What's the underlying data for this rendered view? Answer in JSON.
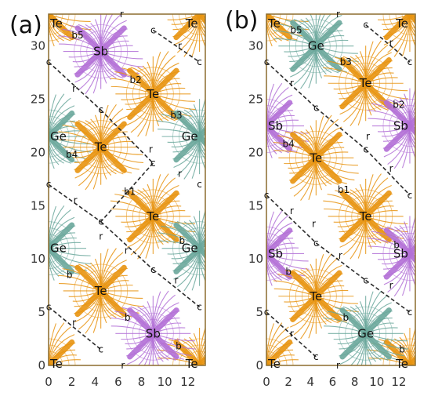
{
  "colors": {
    "Te": "#e8930f",
    "Sb": "#b26fd6",
    "Ge": "#6aa79b",
    "frame": "#8b6c2e",
    "bond_path": "#2b2b2b"
  },
  "panels": [
    {
      "id": "a",
      "panel_label": "(a)",
      "x_ticks": [
        "0",
        "2",
        "4",
        "6",
        "8",
        "10",
        "12"
      ],
      "y_ticks": [
        "0",
        "5",
        "10",
        "15",
        "20",
        "25",
        "30"
      ],
      "atoms": [
        {
          "text": "Te",
          "element": "Te",
          "x": 0,
          "y": 0
        },
        {
          "text": "Te",
          "element": "Te",
          "x": 13,
          "y": 0
        },
        {
          "text": "Te",
          "element": "Te",
          "x": 0,
          "y": 33
        },
        {
          "text": "Te",
          "element": "Te",
          "x": 13,
          "y": 33
        },
        {
          "text": "Sb",
          "element": "Sb",
          "x": 4.5,
          "y": 29.5
        },
        {
          "text": "Te",
          "element": "Te",
          "x": 9,
          "y": 25.5
        },
        {
          "text": "Ge",
          "element": "Ge",
          "x": 0,
          "y": 21.5
        },
        {
          "text": "Ge",
          "element": "Ge",
          "x": 13,
          "y": 21.5
        },
        {
          "text": "Te",
          "element": "Te",
          "x": 4.5,
          "y": 20.5
        },
        {
          "text": "Te",
          "element": "Te",
          "x": 9,
          "y": 14
        },
        {
          "text": "Ge",
          "element": "Ge",
          "x": 0,
          "y": 11
        },
        {
          "text": "Ge",
          "element": "Ge",
          "x": 13,
          "y": 11
        },
        {
          "text": "Te",
          "element": "Te",
          "x": 4.5,
          "y": 7
        },
        {
          "text": "Sb",
          "element": "Sb",
          "x": 9,
          "y": 3
        }
      ],
      "critical_points": [
        {
          "text": "c",
          "x": 9,
          "y": 31.5
        },
        {
          "text": "c",
          "x": 0,
          "y": 28.5
        },
        {
          "text": "c",
          "x": 13,
          "y": 28.5
        },
        {
          "text": "c",
          "x": 4.5,
          "y": 24
        },
        {
          "text": "c",
          "x": 9,
          "y": 19
        },
        {
          "text": "c",
          "x": 0,
          "y": 17
        },
        {
          "text": "c",
          "x": 13,
          "y": 17
        },
        {
          "text": "c",
          "x": 4.5,
          "y": 13.5
        },
        {
          "text": "c",
          "x": 9,
          "y": 9
        },
        {
          "text": "c",
          "x": 0,
          "y": 5.5
        },
        {
          "text": "c",
          "x": 13,
          "y": 5.5
        },
        {
          "text": "c",
          "x": 4.5,
          "y": 1.5
        },
        {
          "text": "b5",
          "x": 2.5,
          "y": 31
        },
        {
          "text": "b2",
          "x": 7.5,
          "y": 26.8
        },
        {
          "text": "b3",
          "x": 11,
          "y": 23.5
        },
        {
          "text": "b4",
          "x": 2,
          "y": 19.8
        },
        {
          "text": "b1",
          "x": 7,
          "y": 16.3
        },
        {
          "text": "b",
          "x": 11.5,
          "y": 11.7
        },
        {
          "text": "b",
          "x": 1.8,
          "y": 8.5
        },
        {
          "text": "b",
          "x": 6.8,
          "y": 4.5
        },
        {
          "text": "b",
          "x": 11.2,
          "y": 1.8
        },
        {
          "text": "r",
          "x": 6.3,
          "y": 33
        },
        {
          "text": "r",
          "x": 11.3,
          "y": 30
        },
        {
          "text": "r",
          "x": 2.2,
          "y": 26
        },
        {
          "text": "r",
          "x": 8.8,
          "y": 20.3
        },
        {
          "text": "r",
          "x": 11.3,
          "y": 18
        },
        {
          "text": "r",
          "x": 2.3,
          "y": 15.5
        },
        {
          "text": "r",
          "x": 4.5,
          "y": 12.1
        },
        {
          "text": "r",
          "x": 6.7,
          "y": 10.8
        },
        {
          "text": "r",
          "x": 11,
          "y": 8
        },
        {
          "text": "r",
          "x": 2.2,
          "y": 4
        },
        {
          "text": "r",
          "x": 6.4,
          "y": 0
        }
      ]
    },
    {
      "id": "b",
      "panel_label": "(b)",
      "x_ticks": [
        "0",
        "2",
        "4",
        "6",
        "8",
        "10",
        "12"
      ],
      "y_ticks": [
        "0",
        "5",
        "10",
        "15",
        "20",
        "25",
        "30"
      ],
      "atoms": [
        {
          "text": "Te",
          "element": "Te",
          "x": 0,
          "y": 0
        },
        {
          "text": "Te",
          "element": "Te",
          "x": 13,
          "y": 0
        },
        {
          "text": "Te",
          "element": "Te",
          "x": 0,
          "y": 33
        },
        {
          "text": "Te",
          "element": "Te",
          "x": 13,
          "y": 33
        },
        {
          "text": "Ge",
          "element": "Ge",
          "x": 4.5,
          "y": 30
        },
        {
          "text": "Te",
          "element": "Te",
          "x": 9,
          "y": 26.5
        },
        {
          "text": "Sb",
          "element": "Sb",
          "x": 0,
          "y": 22.5
        },
        {
          "text": "Sb",
          "element": "Sb",
          "x": 13,
          "y": 22.5
        },
        {
          "text": "Te",
          "element": "Te",
          "x": 4.5,
          "y": 19.5
        },
        {
          "text": "Te",
          "element": "Te",
          "x": 9,
          "y": 14
        },
        {
          "text": "Sb",
          "element": "Sb",
          "x": 0,
          "y": 10.5
        },
        {
          "text": "Sb",
          "element": "Sb",
          "x": 13,
          "y": 10.5
        },
        {
          "text": "Te",
          "element": "Te",
          "x": 4.5,
          "y": 6.5
        },
        {
          "text": "Ge",
          "element": "Ge",
          "x": 9,
          "y": 3
        }
      ],
      "critical_points": [
        {
          "text": "c",
          "x": 9,
          "y": 32
        },
        {
          "text": "c",
          "x": 0,
          "y": 28.5
        },
        {
          "text": "c",
          "x": 13,
          "y": 28.5
        },
        {
          "text": "c",
          "x": 4.5,
          "y": 24.2
        },
        {
          "text": "c",
          "x": 9,
          "y": 20.3
        },
        {
          "text": "c",
          "x": 0,
          "y": 16
        },
        {
          "text": "c",
          "x": 13,
          "y": 16
        },
        {
          "text": "c",
          "x": 4.5,
          "y": 11.5
        },
        {
          "text": "c",
          "x": 9,
          "y": 8
        },
        {
          "text": "c",
          "x": 0,
          "y": 5
        },
        {
          "text": "c",
          "x": 13,
          "y": 5
        },
        {
          "text": "c",
          "x": 4.5,
          "y": 0.8
        },
        {
          "text": "b5",
          "x": 2.7,
          "y": 31.5
        },
        {
          "text": "b3",
          "x": 7.2,
          "y": 28.5
        },
        {
          "text": "b2",
          "x": 12,
          "y": 24.5
        },
        {
          "text": "b4",
          "x": 2,
          "y": 20.8
        },
        {
          "text": "b1",
          "x": 7,
          "y": 16.5
        },
        {
          "text": "b",
          "x": 11.8,
          "y": 11.3
        },
        {
          "text": "b",
          "x": 2,
          "y": 8.8
        },
        {
          "text": "b",
          "x": 7.2,
          "y": 4.5
        },
        {
          "text": "b",
          "x": 12.3,
          "y": 1.5
        },
        {
          "text": "r",
          "x": 6.5,
          "y": 33
        },
        {
          "text": "r",
          "x": 11.3,
          "y": 30.3
        },
        {
          "text": "r",
          "x": 2.3,
          "y": 26.5
        },
        {
          "text": "r",
          "x": 9.2,
          "y": 21.5
        },
        {
          "text": "r",
          "x": 11.3,
          "y": 18.5
        },
        {
          "text": "r",
          "x": 2.3,
          "y": 14.5
        },
        {
          "text": "r",
          "x": 4.3,
          "y": 13.3
        },
        {
          "text": "r",
          "x": 6.7,
          "y": 10.3
        },
        {
          "text": "r",
          "x": 11.3,
          "y": 7.5
        },
        {
          "text": "r",
          "x": 2.3,
          "y": 3
        },
        {
          "text": "r",
          "x": 6.5,
          "y": 0
        }
      ]
    }
  ]
}
